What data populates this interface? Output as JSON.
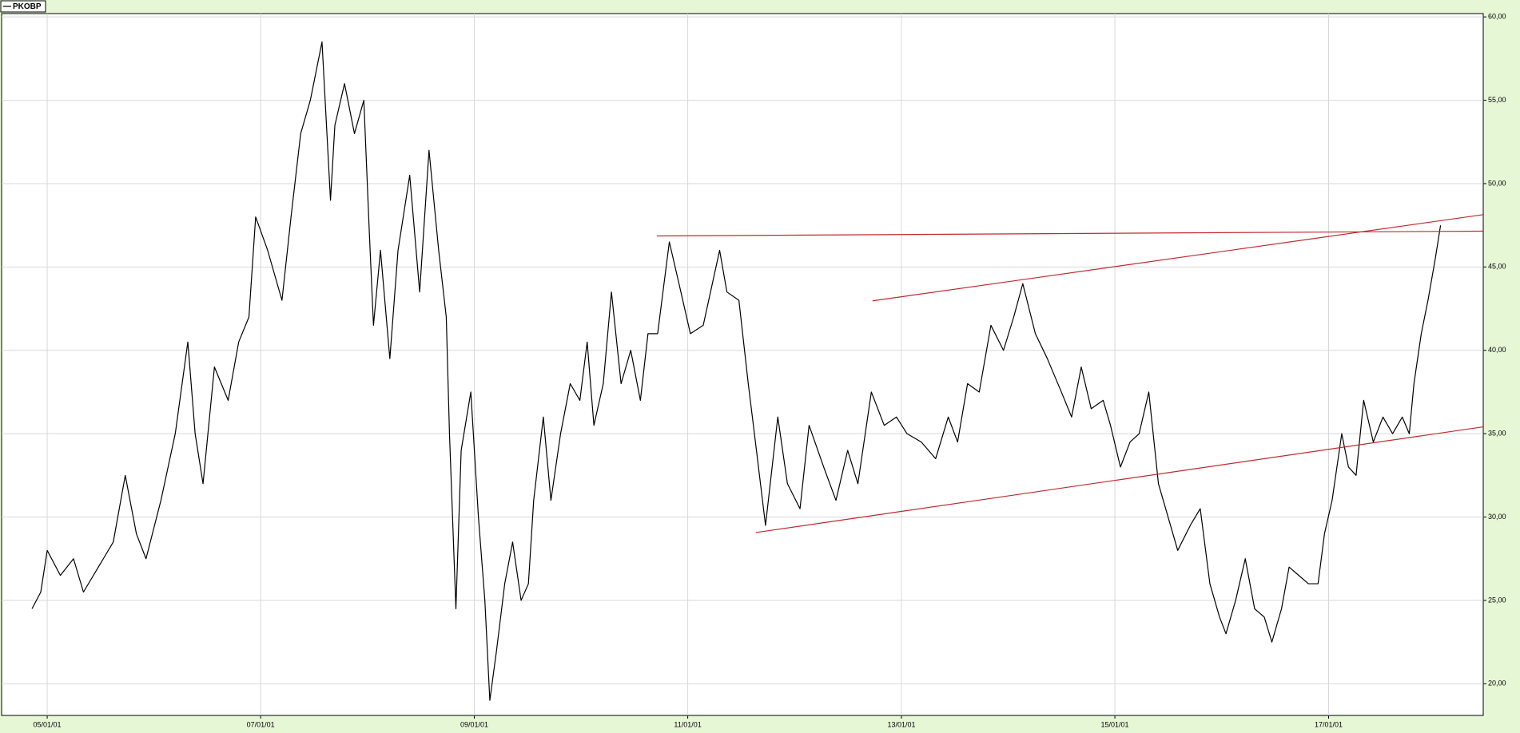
{
  "chart_data": {
    "type": "line",
    "xlim": [
      "2004-07-29",
      "2018-06-14"
    ],
    "xticks": [
      {
        "value": "2005-01-01",
        "label": "05/01/01"
      },
      {
        "value": "2007-01-01",
        "label": "07/01/01"
      },
      {
        "value": "2009-01-01",
        "label": "09/01/01"
      },
      {
        "value": "2011-01-01",
        "label": "11/01/01"
      },
      {
        "value": "2013-01-01",
        "label": "13/01/01"
      },
      {
        "value": "2015-01-01",
        "label": "15/01/01"
      },
      {
        "value": "2017-01-01",
        "label": "17/01/01"
      }
    ],
    "ylim": [
      18.1,
      60.2
    ],
    "yticks": [
      {
        "value": 20,
        "label": "20,00"
      },
      {
        "value": 25,
        "label": "25,00"
      },
      {
        "value": 30,
        "label": "30,00"
      },
      {
        "value": 35,
        "label": "35,00"
      },
      {
        "value": 40,
        "label": "40,00"
      },
      {
        "value": 45,
        "label": "45,00"
      },
      {
        "value": 50,
        "label": "50,00"
      },
      {
        "value": 55,
        "label": "55,00"
      },
      {
        "value": 60,
        "label": "60,00"
      }
    ],
    "grid": true,
    "legend": "top-left",
    "x": [
      "2004-11-10",
      "2004-12-10",
      "2005-01-01",
      "2005-02-15",
      "2005-04-01",
      "2005-05-05",
      "2005-06-25",
      "2005-08-15",
      "2005-09-25",
      "2005-11-02",
      "2005-12-05",
      "2006-01-25",
      "2006-03-15",
      "2006-04-27",
      "2006-05-22",
      "2006-06-18",
      "2006-07-27",
      "2006-09-12",
      "2006-10-18",
      "2006-11-22",
      "2006-12-15",
      "2007-01-25",
      "2007-03-15",
      "2007-04-15",
      "2007-05-18",
      "2007-06-20",
      "2007-07-30",
      "2007-08-28",
      "2007-09-12",
      "2007-10-15",
      "2007-11-18",
      "2007-12-20",
      "2008-01-08",
      "2008-01-22",
      "2008-02-15",
      "2008-03-18",
      "2008-04-15",
      "2008-05-25",
      "2008-06-28",
      "2008-07-30",
      "2008-09-01",
      "2008-09-27",
      "2008-10-08",
      "2008-10-30",
      "2008-11-17",
      "2008-12-20",
      "2009-01-15",
      "2009-02-06",
      "2009-02-23",
      "2009-03-18",
      "2009-04-15",
      "2009-05-12",
      "2009-06-10",
      "2009-07-05",
      "2009-07-23",
      "2009-08-25",
      "2009-09-20",
      "2009-10-23",
      "2009-11-25",
      "2009-12-28",
      "2010-01-22",
      "2010-02-14",
      "2010-03-18",
      "2010-04-15",
      "2010-05-18",
      "2010-06-20",
      "2010-07-23",
      "2010-08-18",
      "2010-09-20",
      "2010-10-30",
      "2010-12-02",
      "2011-01-10",
      "2011-02-23",
      "2011-04-20",
      "2011-05-15",
      "2011-06-25",
      "2011-07-27",
      "2011-08-24",
      "2011-09-24",
      "2011-11-05",
      "2011-12-08",
      "2012-01-20",
      "2012-02-20",
      "2012-04-10",
      "2012-05-22",
      "2012-07-01",
      "2012-08-05",
      "2012-09-20",
      "2012-11-03",
      "2012-12-15",
      "2013-01-20",
      "2013-03-10",
      "2013-04-28",
      "2013-06-10",
      "2013-07-12",
      "2013-08-15",
      "2013-09-24",
      "2013-11-03",
      "2013-12-16",
      "2014-01-20",
      "2014-02-20",
      "2014-04-04",
      "2014-05-15",
      "2014-07-02",
      "2014-08-06",
      "2014-09-08",
      "2014-10-12",
      "2014-11-22",
      "2014-12-17",
      "2015-01-20",
      "2015-02-22",
      "2015-03-25",
      "2015-04-27",
      "2015-05-30",
      "2015-07-02",
      "2015-08-04",
      "2015-09-16",
      "2015-10-20",
      "2015-11-22",
      "2015-12-25",
      "2016-01-16",
      "2016-02-18",
      "2016-03-22",
      "2016-04-23",
      "2016-05-26",
      "2016-06-21",
      "2016-07-24",
      "2016-08-19",
      "2016-09-21",
      "2016-10-24",
      "2016-11-26",
      "2016-12-18",
      "2017-01-13",
      "2017-02-15",
      "2017-03-10",
      "2017-04-05",
      "2017-05-01",
      "2017-06-03",
      "2017-07-06",
      "2017-08-08",
      "2017-09-10",
      "2017-10-04",
      "2017-10-20",
      "2017-11-14",
      "2017-12-07",
      "2018-01-01",
      "2018-01-19"
    ],
    "series": [
      {
        "name": "PKOBP",
        "color": "#000000",
        "values": [
          24.5,
          25.5,
          28,
          26.5,
          27.5,
          25.5,
          27,
          28.5,
          32.5,
          29,
          27.5,
          31,
          35,
          40.5,
          35,
          32,
          39,
          37,
          40.5,
          42,
          48,
          46,
          43,
          48,
          53,
          55,
          58.5,
          49,
          53.5,
          56,
          53,
          55,
          47,
          41.5,
          46,
          39.5,
          46,
          50.5,
          43.5,
          52,
          46,
          42,
          35,
          24.5,
          34,
          37.5,
          30,
          25,
          19,
          22,
          26,
          28.5,
          25,
          26,
          31,
          36,
          31,
          35,
          38,
          37,
          40.5,
          35.5,
          38,
          43.5,
          38,
          40,
          37,
          41,
          41,
          46.5,
          44,
          41,
          41.5,
          46,
          43.5,
          43,
          38,
          34,
          29.5,
          36,
          32,
          30.5,
          35.5,
          33,
          31,
          34,
          32,
          37.5,
          35.5,
          36,
          35,
          34.5,
          33.5,
          36,
          34.5,
          38,
          37.5,
          41.5,
          40,
          42,
          44,
          41,
          39.5,
          37.5,
          36,
          39,
          36.5,
          37,
          35.5,
          33,
          34.5,
          35,
          37.5,
          32,
          30,
          28,
          29.5,
          30.5,
          26,
          24,
          23,
          25,
          27.5,
          24.5,
          24,
          22.5,
          24.5,
          27,
          26.5,
          26,
          26,
          29,
          31,
          35,
          33,
          32.5,
          37,
          34.5,
          36,
          35,
          36,
          35,
          38,
          41,
          43,
          45.5,
          47.5
        ]
      }
    ],
    "trendlines": [
      {
        "color": "#c0282d",
        "x": [
          "2010-09-17",
          "2018-06-14"
        ],
        "values": [
          46.86,
          47.15
        ]
      },
      {
        "color": "#c0282d",
        "x": [
          "2012-09-24",
          "2018-06-14"
        ],
        "values": [
          42.97,
          48.14
        ]
      },
      {
        "color": "#c0282d",
        "x": [
          "2011-08-22",
          "2018-06-14"
        ],
        "values": [
          29.07,
          35.41
        ]
      }
    ]
  }
}
